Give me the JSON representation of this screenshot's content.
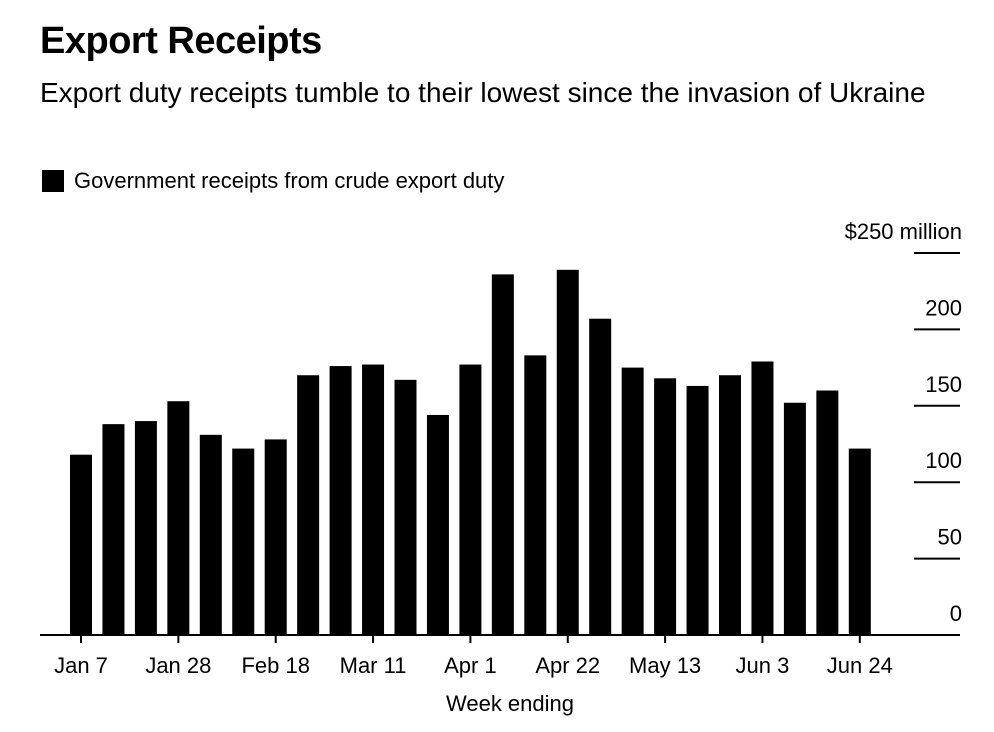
{
  "header": {
    "title": "Export Receipts",
    "subtitle": "Export duty receipts tumble to their lowest since the invasion of Ukraine"
  },
  "legend": {
    "label": "Government receipts from crude export duty",
    "color": "#000000"
  },
  "chart_data": {
    "type": "bar",
    "title": "Export Receipts",
    "subtitle": "Export duty receipts tumble to their lowest since the invasion of Ukraine",
    "xlabel": "Week ending",
    "ylabel": "",
    "ylim": [
      0,
      250
    ],
    "yticks": [
      0,
      50,
      100,
      150,
      200,
      250
    ],
    "ytick_labels": [
      "0",
      "50",
      "100",
      "150",
      "200",
      "$250 million"
    ],
    "xtick_labels": [
      "Jan 7",
      "Jan 28",
      "Feb 18",
      "Mar 11",
      "Apr 1",
      "Apr 22",
      "May 13",
      "Jun 3",
      "Jun 24"
    ],
    "categories": [
      "Jan 7",
      "Jan 14",
      "Jan 21",
      "Jan 28",
      "Feb 4",
      "Feb 11",
      "Feb 18",
      "Feb 25",
      "Mar 4",
      "Mar 11",
      "Mar 18",
      "Mar 25",
      "Apr 1",
      "Apr 8",
      "Apr 15",
      "Apr 22",
      "Apr 29",
      "May 6",
      "May 13",
      "May 20",
      "May 27",
      "Jun 3",
      "Jun 10",
      "Jun 17",
      "Jun 24"
    ],
    "series": [
      {
        "name": "Government receipts from crude export duty",
        "color": "#000000",
        "values": [
          118,
          138,
          140,
          153,
          131,
          122,
          128,
          170,
          176,
          177,
          167,
          144,
          177,
          236,
          183,
          239,
          207,
          175,
          168,
          163,
          170,
          179,
          152,
          160,
          122
        ]
      }
    ],
    "grid": false,
    "legend_position": "top-left",
    "y_axis_position": "right"
  }
}
